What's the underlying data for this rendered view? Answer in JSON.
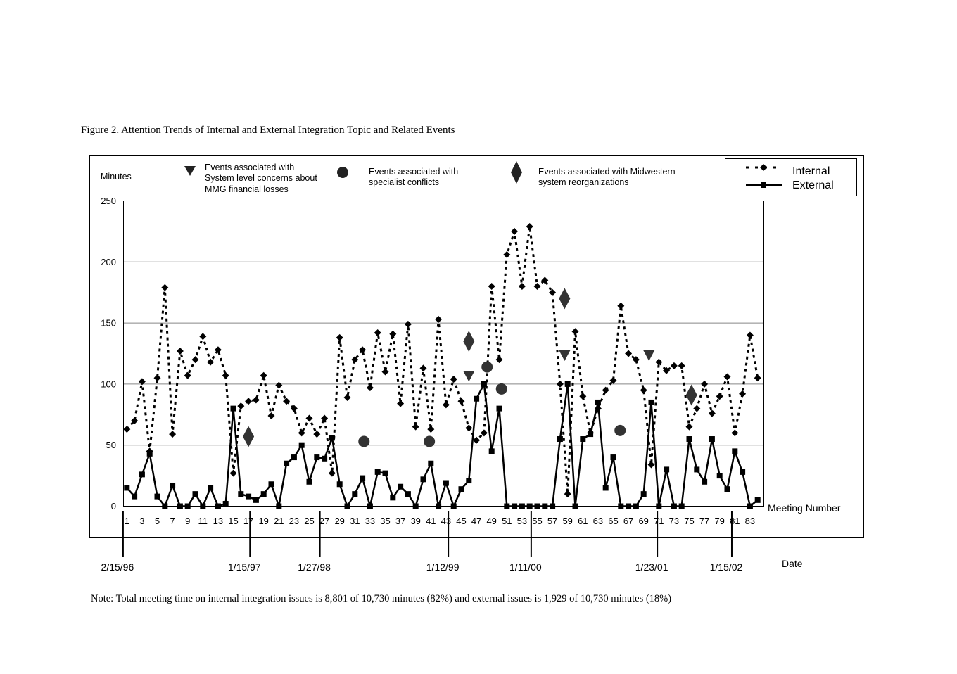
{
  "caption": "Figure 2. Attention Trends of Internal and External Integration Topic and Related Events",
  "note": "Note: Total meeting time on internal integration issues is 8,801 of 10,730 minutes (82%) and external issues is 1,929 of 10,730 minutes (18%)",
  "event_legend": {
    "triangle": [
      "Events associated with",
      "System level concerns about",
      "MMG financial losses"
    ],
    "circle": [
      "Events associated with",
      "specialist conflicts"
    ],
    "diamond": [
      "Events associated with Midwestern",
      "system reorganizations"
    ]
  },
  "chart_data": {
    "type": "line",
    "ylabel": "Minutes",
    "xlabel": "Meeting Number",
    "ylim": [
      0,
      250
    ],
    "yticks": [
      0,
      50,
      100,
      150,
      200,
      250
    ],
    "xticks": [
      1,
      3,
      5,
      7,
      9,
      11,
      13,
      15,
      17,
      19,
      21,
      23,
      25,
      27,
      29,
      31,
      33,
      35,
      37,
      39,
      41,
      43,
      45,
      47,
      49,
      51,
      53,
      55,
      57,
      59,
      61,
      63,
      65,
      67,
      69,
      71,
      73,
      75,
      77,
      79,
      81,
      83
    ],
    "grid": "horizontal",
    "legend": "top-right",
    "series": [
      {
        "name": "Internal",
        "style": "dotted",
        "marker": "diamond",
        "values": [
          63,
          70,
          102,
          45,
          105,
          179,
          59,
          127,
          107,
          120,
          139,
          118,
          128,
          107,
          27,
          82,
          86,
          87,
          107,
          74,
          99,
          86,
          80,
          60,
          72,
          59,
          72,
          27,
          138,
          89,
          120,
          128,
          97,
          142,
          110,
          141,
          84,
          149,
          65,
          113,
          63,
          153,
          83,
          104,
          86,
          64,
          54,
          60,
          180,
          120,
          206,
          225,
          180,
          229,
          180,
          185,
          175,
          100,
          10,
          143,
          90,
          60,
          80,
          95,
          103,
          164,
          125,
          120,
          95,
          34,
          118,
          111,
          115,
          115,
          65,
          80,
          100,
          76,
          90,
          106,
          60,
          92,
          140,
          105
        ]
      },
      {
        "name": "External",
        "style": "solid",
        "marker": "square",
        "values": [
          15,
          8,
          26,
          43,
          8,
          0,
          17,
          0,
          0,
          10,
          0,
          15,
          0,
          2,
          80,
          10,
          8,
          5,
          10,
          18,
          0,
          35,
          40,
          50,
          20,
          40,
          39,
          56,
          18,
          0,
          10,
          23,
          0,
          28,
          27,
          7,
          16,
          10,
          0,
          22,
          35,
          0,
          19,
          0,
          14,
          21,
          88,
          100,
          45,
          80,
          0,
          0,
          0,
          0,
          0,
          0,
          0,
          55,
          100,
          0,
          55,
          59,
          85,
          15,
          40,
          0,
          0,
          0,
          10,
          85,
          0,
          30,
          0,
          0,
          55,
          30,
          20,
          55,
          25,
          14,
          45,
          28,
          0,
          5
        ]
      }
    ],
    "events": {
      "triangle": [
        {
          "x": 46,
          "y": 106
        },
        {
          "x": 58.6,
          "y": 123
        },
        {
          "x": 69.7,
          "y": 123
        }
      ],
      "circle": [
        {
          "x": 32.2,
          "y": 53
        },
        {
          "x": 40.8,
          "y": 53
        },
        {
          "x": 48.4,
          "y": 114
        },
        {
          "x": 50.3,
          "y": 96
        },
        {
          "x": 65.9,
          "y": 62
        }
      ],
      "diamond": [
        {
          "x": 17,
          "y": 57
        },
        {
          "x": 46,
          "y": 135
        },
        {
          "x": 58.6,
          "y": 170
        },
        {
          "x": 75.3,
          "y": 91
        }
      ]
    },
    "date_axis": {
      "label": "Date",
      "dates": [
        {
          "label": "2/15/96",
          "meeting": 0.5
        },
        {
          "label": "1/15/97",
          "meeting": 17.2
        },
        {
          "label": "1/27/98",
          "meeting": 26.4
        },
        {
          "label": "1/12/99",
          "meeting": 43.3
        },
        {
          "label": "1/11/00",
          "meeting": 54.2
        },
        {
          "label": "1/23/01",
          "meeting": 70.8
        },
        {
          "label": "1/15/02",
          "meeting": 80.6
        }
      ]
    }
  }
}
